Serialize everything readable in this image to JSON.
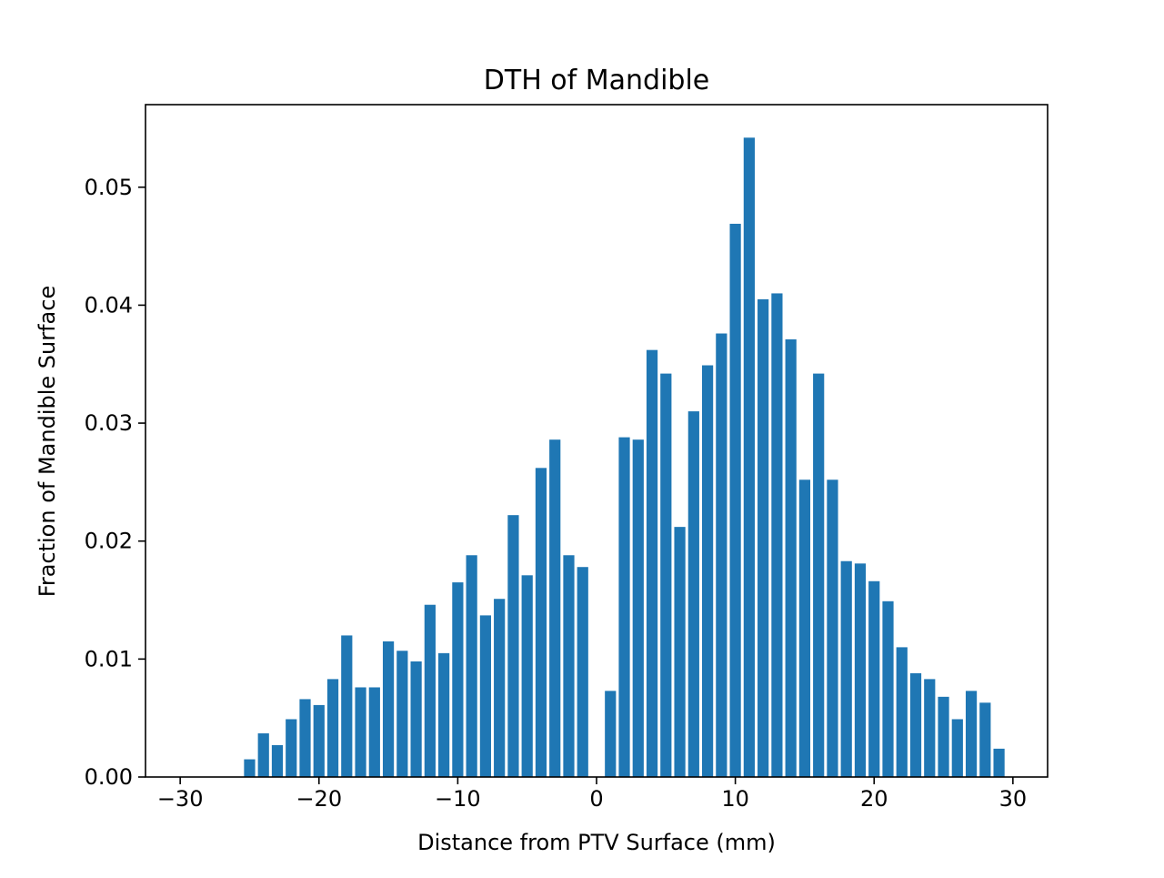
{
  "chart_data": {
    "type": "bar",
    "title": "DTH of Mandible",
    "xlabel": "Distance from PTV Surface (mm)",
    "ylabel": "Fraction of Mandible Surface",
    "xlim": [
      -32.5,
      32.5
    ],
    "ylim": [
      0,
      0.057
    ],
    "xticks": [
      -30,
      -20,
      -10,
      0,
      10,
      20,
      30
    ],
    "xtick_labels": [
      "−30",
      "−20",
      "−10",
      "0",
      "10",
      "20",
      "30"
    ],
    "yticks": [
      0.0,
      0.01,
      0.02,
      0.03,
      0.04,
      0.05
    ],
    "ytick_labels": [
      "0.00",
      "0.01",
      "0.02",
      "0.03",
      "0.04",
      "0.05"
    ],
    "grid": false,
    "bar_color": "#1f77b4",
    "bar_width_mm": 0.8,
    "x": [
      -25,
      -24,
      -23,
      -22,
      -21,
      -20,
      -19,
      -18,
      -17,
      -16,
      -15,
      -14,
      -13,
      -12,
      -11,
      -10,
      -9,
      -8,
      -7,
      -6,
      -5,
      -4,
      -3,
      -2,
      -1,
      0,
      1,
      2,
      3,
      4,
      5,
      6,
      7,
      8,
      9,
      10,
      11,
      12,
      13,
      14,
      15,
      16,
      17,
      18,
      19,
      20,
      21,
      22,
      23,
      24,
      25,
      26,
      27,
      28,
      29
    ],
    "values": [
      0.0015,
      0.0037,
      0.0027,
      0.0049,
      0.0066,
      0.0061,
      0.0083,
      0.012,
      0.0076,
      0.0076,
      0.0115,
      0.0107,
      0.0098,
      0.0146,
      0.0105,
      0.0165,
      0.0188,
      0.0137,
      0.0151,
      0.0222,
      0.0171,
      0.0262,
      0.0286,
      0.0188,
      0.0178,
      0.0,
      0.0073,
      0.0288,
      0.0286,
      0.0362,
      0.0342,
      0.0212,
      0.031,
      0.0349,
      0.0376,
      0.0469,
      0.0542,
      0.0405,
      0.041,
      0.0371,
      0.0252,
      0.0342,
      0.0252,
      0.0183,
      0.0181,
      0.0166,
      0.0149,
      0.011,
      0.0088,
      0.0083,
      0.0068,
      0.0049,
      0.0073,
      0.0063,
      0.0024
    ]
  }
}
